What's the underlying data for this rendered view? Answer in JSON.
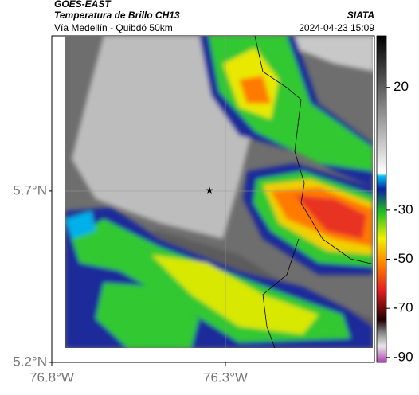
{
  "header": {
    "title": "GOES-EAST",
    "subtitle": "Temperatura de Brillo CH13",
    "source": "SIATA",
    "route": "Vía Medellín - Quibdó 50km",
    "timestamp": "2024-04-23 15:09"
  },
  "map": {
    "latlim": [
      5.2,
      6.153
    ],
    "lonlim": [
      -76.8,
      -75.871
    ],
    "latticks": [
      {
        "value": 5.2,
        "label": "5.2°N"
      },
      {
        "value": 5.7,
        "label": "5.7°N"
      }
    ],
    "lonticks": [
      {
        "value": -76.8,
        "label": "76.8°W"
      },
      {
        "value": -76.3,
        "label": "76.3°W"
      }
    ]
  },
  "colorbar": {
    "lim": [
      -92,
      41
    ],
    "ticks": [
      20,
      -30,
      -50,
      -70,
      -90
    ]
  }
}
